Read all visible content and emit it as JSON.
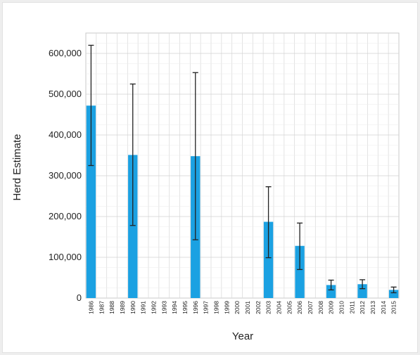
{
  "chart_data": {
    "type": "bar",
    "xlabel": "Year",
    "ylabel": "Herd Estimate",
    "ylim": [
      0,
      650000
    ],
    "yticks": [
      "0",
      "100,000",
      "200,000",
      "300,000",
      "400,000",
      "500,000",
      "600,000"
    ],
    "ytick_values": [
      0,
      100000,
      200000,
      300000,
      400000,
      500000,
      600000
    ],
    "grid": true,
    "bar_color": "#1ba1e2",
    "error_bar_color": "#222222",
    "categories": [
      "1986",
      "1987",
      "1988",
      "1989",
      "1990",
      "1991",
      "1992",
      "1993",
      "1994",
      "1995",
      "1996",
      "1997",
      "1998",
      "1999",
      "2000",
      "2001",
      "2002",
      "2003",
      "2004",
      "2005",
      "2006",
      "2007",
      "2008",
      "2009",
      "2010",
      "2011",
      "2012",
      "2013",
      "2014",
      "2015"
    ],
    "series": [
      {
        "values": [
          472000,
          null,
          null,
          null,
          351000,
          null,
          null,
          null,
          null,
          null,
          348000,
          null,
          null,
          null,
          null,
          null,
          null,
          187000,
          null,
          null,
          128000,
          null,
          null,
          32000,
          null,
          null,
          34000,
          null,
          null,
          20000
        ],
        "error_low": [
          325000,
          null,
          null,
          null,
          178000,
          null,
          null,
          null,
          null,
          null,
          143000,
          null,
          null,
          null,
          null,
          null,
          null,
          99000,
          null,
          null,
          70000,
          null,
          null,
          20000,
          null,
          null,
          23000,
          null,
          null,
          13000
        ],
        "error_high": [
          620000,
          null,
          null,
          null,
          525000,
          null,
          null,
          null,
          null,
          null,
          553000,
          null,
          null,
          null,
          null,
          null,
          null,
          273000,
          null,
          null,
          184000,
          null,
          null,
          44000,
          null,
          null,
          45000,
          null,
          null,
          27000
        ]
      }
    ]
  }
}
